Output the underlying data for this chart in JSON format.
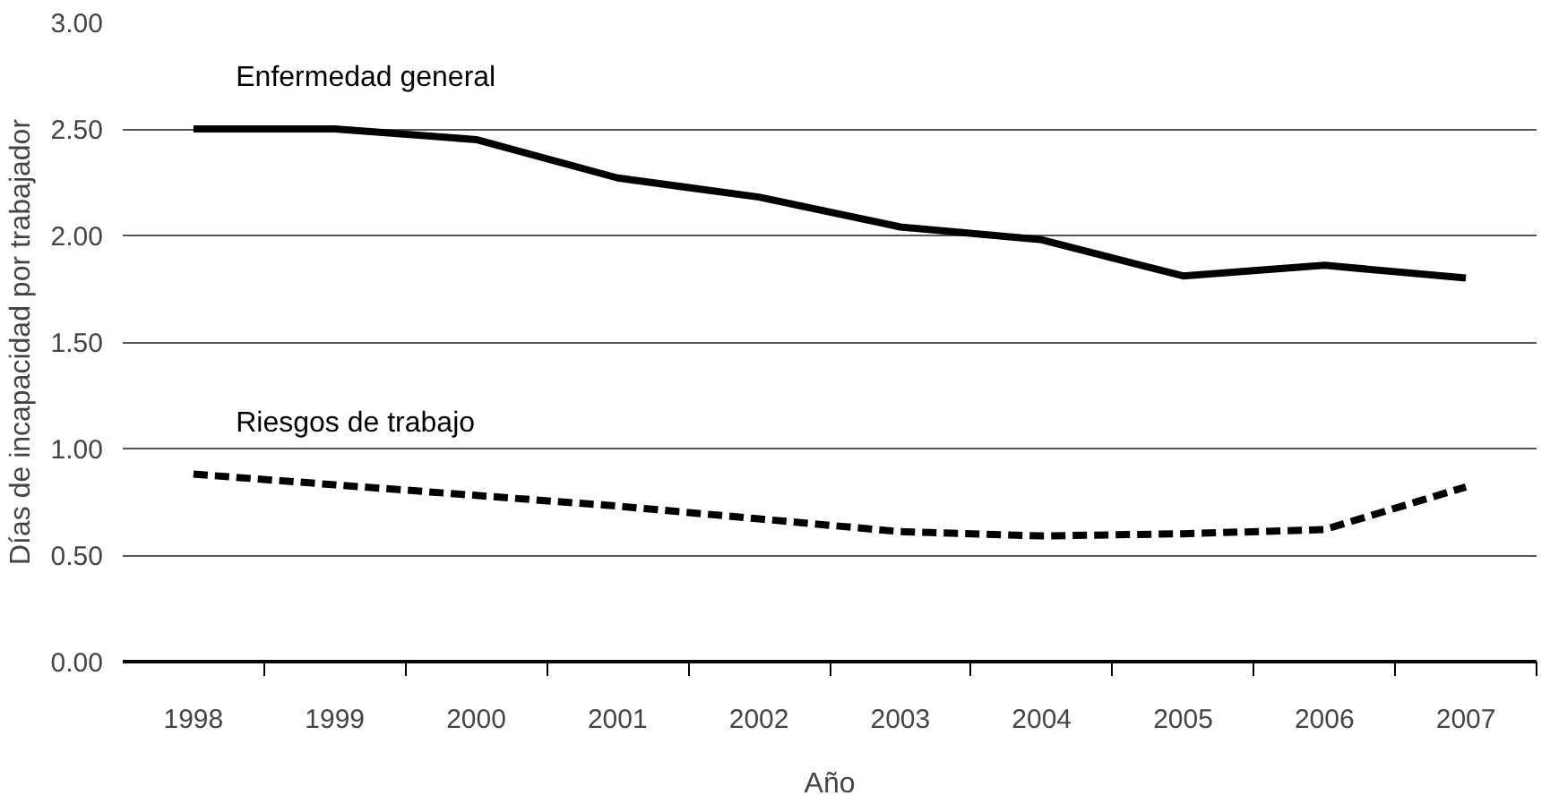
{
  "chart_data": {
    "type": "line",
    "xlabel": "Año",
    "ylabel": "Días de incapacidad por trabajador",
    "categories": [
      "1998",
      "1999",
      "2000",
      "2001",
      "2002",
      "2003",
      "2004",
      "2005",
      "2006",
      "2007"
    ],
    "series": [
      {
        "name": "Enfermedad general",
        "color": "#000000",
        "line_style": "solid",
        "values": [
          2.5,
          2.5,
          2.45,
          2.27,
          2.18,
          2.04,
          1.98,
          1.81,
          1.86,
          1.8
        ]
      },
      {
        "name": "Riesgos de trabajo",
        "color": "#000000",
        "line_style": "dashed",
        "values": [
          0.88,
          0.83,
          0.78,
          0.73,
          0.67,
          0.61,
          0.59,
          0.6,
          0.62,
          0.82
        ]
      }
    ],
    "ylim": [
      0,
      3
    ],
    "yticks": [
      {
        "value": 0,
        "label": "0.00"
      },
      {
        "value": 0.5,
        "label": "0.50"
      },
      {
        "value": 1,
        "label": "1.00"
      },
      {
        "value": 1.5,
        "label": "1.50"
      },
      {
        "value": 2,
        "label": "2.00"
      },
      {
        "value": 2.5,
        "label": "2.50"
      },
      {
        "value": 3,
        "label": "3.00"
      }
    ],
    "grid": "y",
    "marker": "none"
  }
}
